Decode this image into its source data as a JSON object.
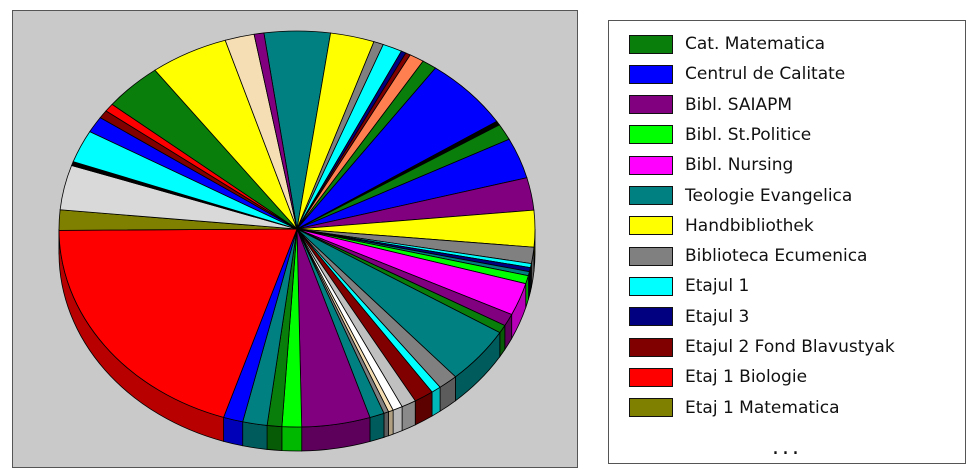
{
  "chart_data": {
    "type": "pie",
    "title": "",
    "legend": {
      "position": "right",
      "entries": [
        {
          "name": "Cat. Matematica",
          "color": "#0a7e0a"
        },
        {
          "name": "Centrul de Calitate",
          "color": "#0000ff"
        },
        {
          "name": "Bibl. SAIAPM",
          "color": "#800080"
        },
        {
          "name": "Bibl. St.Politice",
          "color": "#00ff00"
        },
        {
          "name": "Bibl. Nursing",
          "color": "#ff00ff"
        },
        {
          "name": "Teologie Evangelica",
          "color": "#008080"
        },
        {
          "name": "Handbibliothek",
          "color": "#ffff00"
        },
        {
          "name": "Biblioteca Ecumenica",
          "color": "#808080"
        },
        {
          "name": "Etajul 1",
          "color": "#00ffff"
        },
        {
          "name": "Etajul 3",
          "color": "#000080"
        },
        {
          "name": "Etajul 2 Fond Blavustyak",
          "color": "#800000"
        },
        {
          "name": "Etaj 1 Biologie",
          "color": "#ff0000"
        },
        {
          "name": "Etaj 1 Matematica",
          "color": "#808000"
        }
      ],
      "more_indicator": "..."
    },
    "slices": [
      {
        "color": "#008080",
        "value": 13.5
      },
      {
        "color": "#ffff00",
        "value": 9
      },
      {
        "color": "#808080",
        "value": 2
      },
      {
        "color": "#00ffff",
        "value": 4
      },
      {
        "color": "#000080",
        "value": 1
      },
      {
        "color": "#800000",
        "value": 1
      },
      {
        "color": "#ff7f50",
        "value": 3
      },
      {
        "color": "#0a7e0a",
        "value": 3
      },
      {
        "color": "#0000ff",
        "value": 18
      },
      {
        "color": "#000000",
        "value": 1
      },
      {
        "color": "#0a7e0a",
        "value": 4
      },
      {
        "color": "#0000ff",
        "value": 10
      },
      {
        "color": "#800080",
        "value": 8
      },
      {
        "color": "#ffff00",
        "value": 9
      },
      {
        "color": "#808080",
        "value": 4
      },
      {
        "color": "#00ffff",
        "value": 1
      },
      {
        "color": "#000080",
        "value": 1
      },
      {
        "color": "#008080",
        "value": 1
      },
      {
        "color": "#00ff00",
        "value": 2
      },
      {
        "color": "#ff00ff",
        "value": 8
      },
      {
        "color": "#800080",
        "value": 3
      },
      {
        "color": "#0a7e0a",
        "value": 2
      },
      {
        "color": "#008080",
        "value": 14
      },
      {
        "color": "#808080",
        "value": 4
      },
      {
        "color": "#00ffff",
        "value": 2
      },
      {
        "color": "#800000",
        "value": 4
      },
      {
        "color": "#c0c0c0",
        "value": 3
      },
      {
        "color": "#ffffff",
        "value": 2
      },
      {
        "color": "#f5deb3",
        "value": 1
      },
      {
        "color": "#808080",
        "value": 1
      },
      {
        "color": "#008080",
        "value": 3
      },
      {
        "color": "#800080",
        "value": 14
      },
      {
        "color": "#00ff00",
        "value": 4
      },
      {
        "color": "#0a7e0a",
        "value": 3
      },
      {
        "color": "#008080",
        "value": 5
      },
      {
        "color": "#0000ff",
        "value": 4
      },
      {
        "color": "#ff0000",
        "value": 60
      },
      {
        "color": "#808000",
        "value": 5
      },
      {
        "color": "#d9d9d9",
        "value": 11
      },
      {
        "color": "#000000",
        "value": 1
      },
      {
        "color": "#00ffff",
        "value": 8
      },
      {
        "color": "#0000ff",
        "value": 4
      },
      {
        "color": "#800000",
        "value": 2
      },
      {
        "color": "#ff0000",
        "value": 2
      },
      {
        "color": "#0a7e0a",
        "value": 12
      },
      {
        "color": "#ffff00",
        "value": 16
      },
      {
        "color": "#f5deb3",
        "value": 6
      },
      {
        "color": "#800080",
        "value": 2
      }
    ]
  }
}
